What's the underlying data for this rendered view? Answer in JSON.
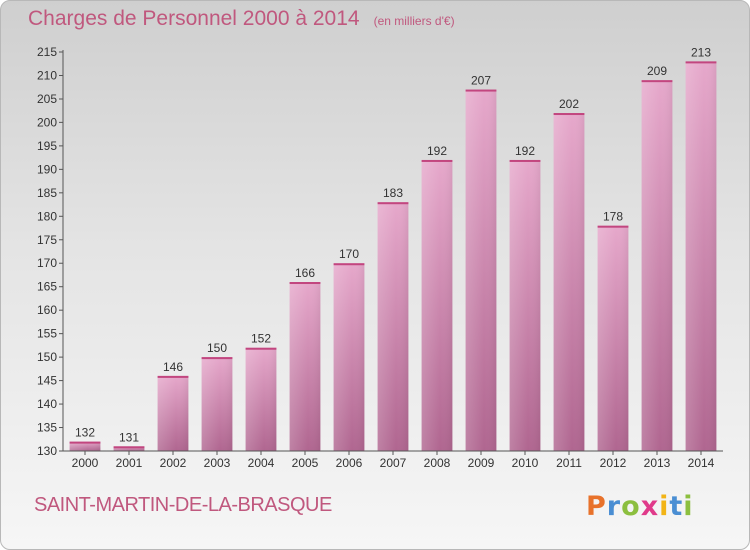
{
  "chart_data": {
    "type": "bar",
    "title": "Charges de Personnel 2000 à 2014",
    "subtitle": "(en milliers d'€)",
    "categories": [
      "2000",
      "2001",
      "2002",
      "2003",
      "2004",
      "2005",
      "2006",
      "2007",
      "2008",
      "2009",
      "2010",
      "2011",
      "2012",
      "2013",
      "2014"
    ],
    "values": [
      132,
      131,
      146,
      150,
      152,
      166,
      170,
      183,
      192,
      207,
      192,
      202,
      178,
      209,
      213
    ],
    "ylim": [
      130,
      215
    ],
    "yticks": [
      130,
      135,
      140,
      145,
      150,
      155,
      160,
      165,
      170,
      175,
      180,
      185,
      190,
      195,
      200,
      205,
      210,
      215
    ],
    "xlabel": "",
    "ylabel": "",
    "grid": false,
    "bar_color": "#c0588a"
  },
  "footer": {
    "commune": "SAINT-MARTIN-DE-LA-BRASQUE",
    "brand_letters": [
      "P",
      "r",
      "o",
      "x",
      "i",
      "t",
      "i"
    ],
    "brand_colors": [
      "#e8722b",
      "#4a8ed3",
      "#8cbf3f",
      "#e03a8a",
      "#f2b416",
      "#4a8ed3",
      "#8cbf3f"
    ]
  }
}
